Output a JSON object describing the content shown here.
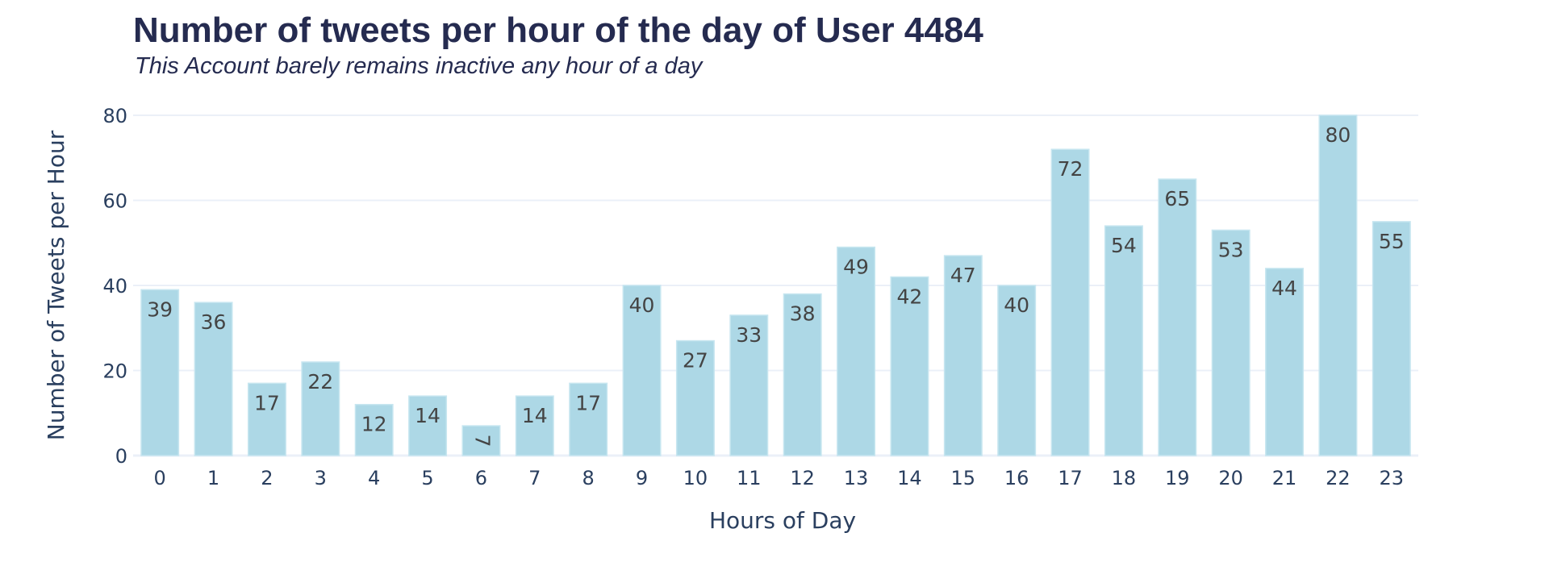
{
  "chart_data": {
    "type": "bar",
    "title": "Number of tweets per hour of the day of User 4484",
    "subtitle": "This Account barely remains inactive any hour of a day",
    "xlabel": "Hours of Day",
    "ylabel": "Number of Tweets per Hour",
    "categories": [
      "0",
      "1",
      "2",
      "3",
      "4",
      "5",
      "6",
      "7",
      "8",
      "9",
      "10",
      "11",
      "12",
      "13",
      "14",
      "15",
      "16",
      "17",
      "18",
      "19",
      "20",
      "21",
      "22",
      "23"
    ],
    "values": [
      39,
      36,
      17,
      22,
      12,
      14,
      7,
      14,
      17,
      40,
      27,
      33,
      38,
      49,
      42,
      47,
      40,
      72,
      54,
      65,
      53,
      44,
      80,
      55
    ],
    "value_labels": [
      "39",
      "36",
      "17",
      "22",
      "12",
      "14",
      "7",
      "14",
      "17",
      "40",
      "27",
      "33",
      "38",
      "49",
      "42",
      "47",
      "40",
      "72",
      "54",
      "65",
      "53",
      "44",
      "80",
      "55"
    ],
    "ylim": [
      0,
      80
    ],
    "yticks": [
      0,
      20,
      40,
      60,
      80
    ],
    "ytick_labels": [
      "0",
      "20",
      "40",
      "60",
      "80"
    ],
    "grid": true,
    "legend": "none",
    "bar_color": "#add8e6",
    "bar_outline_color": "#c7e6f0",
    "text_color": "#2a3f5f",
    "title_color": "#252b50",
    "label_color": "#444444"
  }
}
